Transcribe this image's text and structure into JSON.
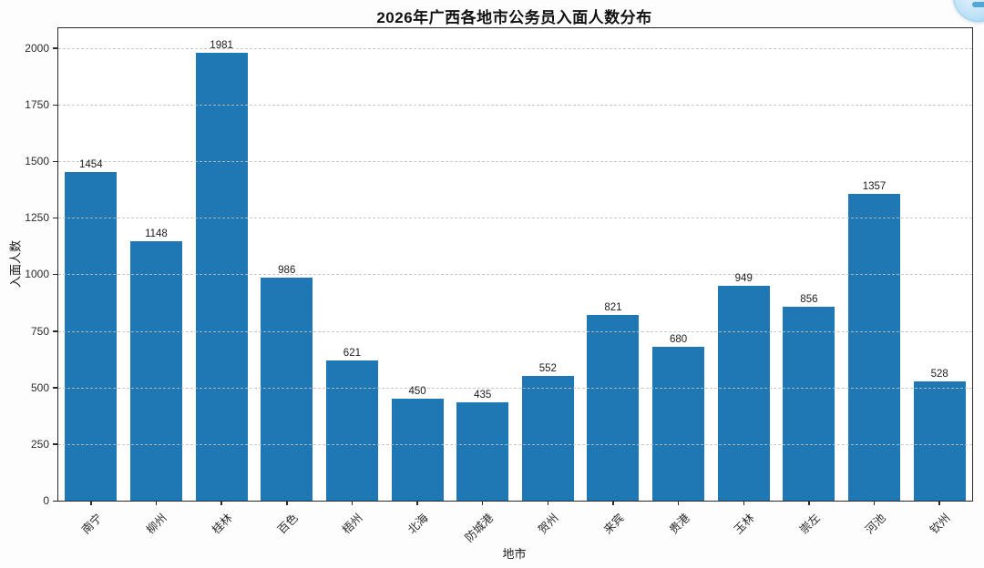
{
  "chart_data": {
    "type": "bar",
    "title": "2026年广西各地市公务员入面人数分布",
    "xlabel": "地市",
    "ylabel": "入面人数",
    "categories": [
      "南宁",
      "柳州",
      "桂林",
      "百色",
      "梧州",
      "北海",
      "防城港",
      "贺州",
      "来宾",
      "贵港",
      "玉林",
      "崇左",
      "河池",
      "钦州"
    ],
    "values": [
      1454,
      1148,
      1981,
      986,
      621,
      450,
      435,
      552,
      821,
      680,
      949,
      856,
      1357,
      528
    ],
    "yticks": [
      0,
      250,
      500,
      750,
      1000,
      1250,
      1500,
      1750,
      2000
    ],
    "ylim": [
      0,
      2088
    ],
    "bar_color": "#1f77b4",
    "spine_color": "#2a2a2a",
    "grid": "horizontal-dashed",
    "legend": "none",
    "x_tick_rotation_deg": 45
  },
  "overlay": {
    "bubble_icon": "floating-assistant-bubble"
  }
}
